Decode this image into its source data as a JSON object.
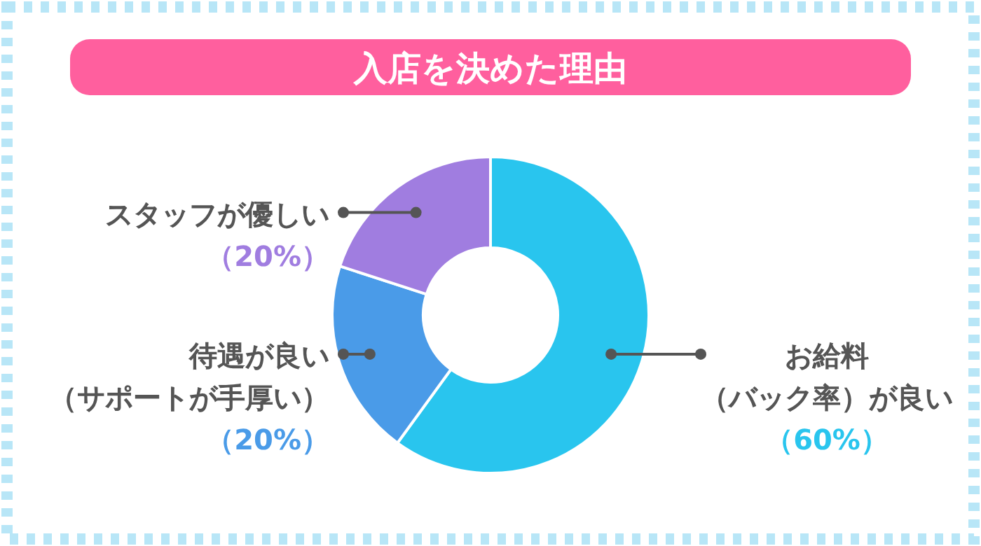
{
  "chart_data": {
    "type": "donut",
    "title": "入店を決めた理由",
    "categories": [
      "お給料（バック率）が良い",
      "待遇が良い（サポートが手厚い）",
      "スタッフが優しい"
    ],
    "values": [
      60,
      20,
      20
    ],
    "colors": [
      "#29c5ee",
      "#4a9be8",
      "#a07de0"
    ],
    "value_labels": [
      "（60%）",
      "（20%）",
      "（20%）"
    ],
    "legend": false
  }
}
